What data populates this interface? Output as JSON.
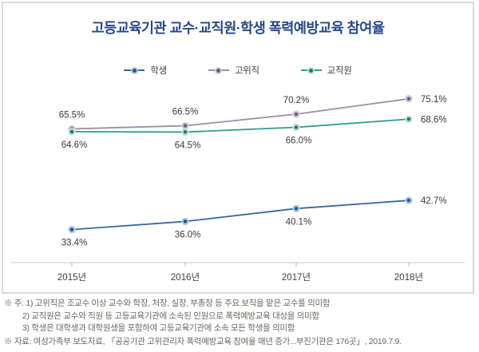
{
  "title": "고등교육기관 교수·교직원·학생 폭력예방교육 참여율",
  "colors": {
    "title": "#27478a",
    "frame_border": "#dadada",
    "axis_line": "#c8c8c8",
    "tick": "#b5b5b5",
    "footnote_text": "#6b6762"
  },
  "chart_data": {
    "type": "line",
    "categories": [
      "2015년",
      "2016년",
      "2017년",
      "2018년"
    ],
    "series": [
      {
        "key": "student",
        "name": "학생",
        "values": [
          33.4,
          36.0,
          40.1,
          42.7
        ],
        "labels": [
          "33.4%",
          "36.0%",
          "40.1%",
          "42.7%"
        ],
        "label_pos": [
          "below",
          "below",
          "below",
          "right"
        ],
        "color": "#34699e",
        "dot": "#1d5c95",
        "halo": "#b5c7da"
      },
      {
        "key": "senior",
        "name": "고위직",
        "values": [
          65.5,
          66.5,
          70.2,
          75.1
        ],
        "labels": [
          "65.5%",
          "66.5%",
          "70.2%",
          "75.1%"
        ],
        "label_pos": [
          "above",
          "above",
          "above",
          "right"
        ],
        "color": "#a08cac",
        "dot": "#6d5c80",
        "halo": "#d2c9d8"
      },
      {
        "key": "staff",
        "name": "교직원",
        "values": [
          64.6,
          64.5,
          66.0,
          68.6
        ],
        "labels": [
          "64.6%",
          "64.5%",
          "66.0%",
          "68.6%"
        ],
        "label_pos": [
          "below",
          "below",
          "below",
          "right"
        ],
        "color": "#2d9e8c",
        "dot": "#1d7c6d",
        "halo": "#c3ded8"
      }
    ],
    "ylim": [
      30,
      80
    ],
    "unit": "%",
    "grid": false,
    "legend_position": "top",
    "xaxis_line": true
  },
  "footnotes": {
    "note_lines": [
      "※ 주: 1) 고위직은 조교수 이상 교수와 학장, 처장, 실장, 부총장 등 주요 보직을 맡은 교수를 의미함",
      "2) 교직원은 교수와 직원 등 고등교육기관에 소속된 인원으로 폭력예방교육 대상을 의미함",
      "3) 학생은 대학생과 대학원생을 포함하여 고등교육기관에 소속 모든 학생을 의미함"
    ],
    "source_line": "※ 자료: 여성가족부 보도자료, 「공공기관 고위관리자 폭력예방교육 참여율 매년 증가...부진기관은 176곳」, 2019.7.9."
  }
}
